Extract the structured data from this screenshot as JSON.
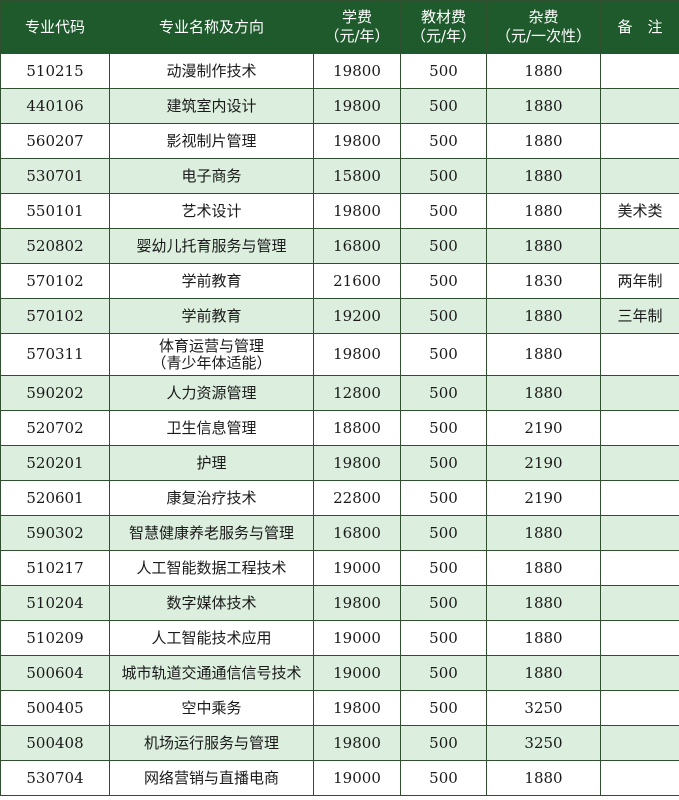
{
  "header": {
    "code": "专业代码",
    "name": "专业名称及方向",
    "tuition_line1": "学费",
    "tuition_line2": "（元/年）",
    "books_line1": "教材费",
    "books_line2": "（元/年）",
    "misc_line1": "杂费",
    "misc_line2": "（元/一次性）",
    "note": "备　注"
  },
  "rows": [
    {
      "code": "510215",
      "name": [
        "动漫制作技术"
      ],
      "tuition": "19800",
      "books": "500",
      "misc": "1880",
      "note": ""
    },
    {
      "code": "440106",
      "name": [
        "建筑室内设计"
      ],
      "tuition": "19800",
      "books": "500",
      "misc": "1880",
      "note": ""
    },
    {
      "code": "560207",
      "name": [
        "影视制片管理"
      ],
      "tuition": "19800",
      "books": "500",
      "misc": "1880",
      "note": ""
    },
    {
      "code": "530701",
      "name": [
        "电子商务"
      ],
      "tuition": "15800",
      "books": "500",
      "misc": "1880",
      "note": ""
    },
    {
      "code": "550101",
      "name": [
        "艺术设计"
      ],
      "tuition": "19800",
      "books": "500",
      "misc": "1880",
      "note": "美术类"
    },
    {
      "code": "520802",
      "name": [
        "婴幼儿托育服务与管理"
      ],
      "tuition": "16800",
      "books": "500",
      "misc": "1880",
      "note": ""
    },
    {
      "code": "570102",
      "name": [
        "学前教育"
      ],
      "tuition": "21600",
      "books": "500",
      "misc": "1830",
      "note": "两年制"
    },
    {
      "code": "570102",
      "name": [
        "学前教育"
      ],
      "tuition": "19200",
      "books": "500",
      "misc": "1880",
      "note": "三年制"
    },
    {
      "code": "570311",
      "name": [
        "体育运营与管理",
        "（青少年体适能）"
      ],
      "tuition": "19800",
      "books": "500",
      "misc": "1880",
      "note": ""
    },
    {
      "code": "590202",
      "name": [
        "人力资源管理"
      ],
      "tuition": "12800",
      "books": "500",
      "misc": "1880",
      "note": ""
    },
    {
      "code": "520702",
      "name": [
        "卫生信息管理"
      ],
      "tuition": "18800",
      "books": "500",
      "misc": "2190",
      "note": ""
    },
    {
      "code": "520201",
      "name": [
        "护理"
      ],
      "tuition": "19800",
      "books": "500",
      "misc": "2190",
      "note": ""
    },
    {
      "code": "520601",
      "name": [
        "康复治疗技术"
      ],
      "tuition": "22800",
      "books": "500",
      "misc": "2190",
      "note": ""
    },
    {
      "code": "590302",
      "name": [
        "智慧健康养老服务与管理"
      ],
      "tuition": "16800",
      "books": "500",
      "misc": "1880",
      "note": ""
    },
    {
      "code": "510217",
      "name": [
        "人工智能数据工程技术"
      ],
      "tuition": "19000",
      "books": "500",
      "misc": "1880",
      "note": ""
    },
    {
      "code": "510204",
      "name": [
        "数字媒体技术"
      ],
      "tuition": "19800",
      "books": "500",
      "misc": "1880",
      "note": ""
    },
    {
      "code": "510209",
      "name": [
        "人工智能技术应用"
      ],
      "tuition": "19000",
      "books": "500",
      "misc": "1880",
      "note": ""
    },
    {
      "code": "500604",
      "name": [
        "城市轨道交通通信信号技术"
      ],
      "tuition": "19000",
      "books": "500",
      "misc": "1880",
      "note": ""
    },
    {
      "code": "500405",
      "name": [
        "空中乘务"
      ],
      "tuition": "19800",
      "books": "500",
      "misc": "3250",
      "note": ""
    },
    {
      "code": "500408",
      "name": [
        "机场运行服务与管理"
      ],
      "tuition": "19800",
      "books": "500",
      "misc": "3250",
      "note": ""
    },
    {
      "code": "530704",
      "name": [
        "网络营销与直播电商"
      ],
      "tuition": "19000",
      "books": "500",
      "misc": "1880",
      "note": ""
    }
  ]
}
